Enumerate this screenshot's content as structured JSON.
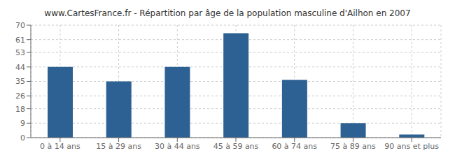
{
  "chart_data": {
    "type": "bar",
    "title": "www.CartesFrance.fr - Répartition par âge de la population masculine d'Ailhon en 2007",
    "categories": [
      "0 à 14 ans",
      "15 à 29 ans",
      "30 à 44 ans",
      "45 à 59 ans",
      "60 à 74 ans",
      "75 à 89 ans",
      "90 ans et plus"
    ],
    "values": [
      44,
      35,
      44,
      65,
      36,
      9,
      2
    ],
    "color": "#2e6193",
    "ylim": [
      0,
      70
    ],
    "yticks": [
      0,
      9,
      18,
      26,
      35,
      44,
      53,
      61,
      70
    ],
    "grid": true
  }
}
